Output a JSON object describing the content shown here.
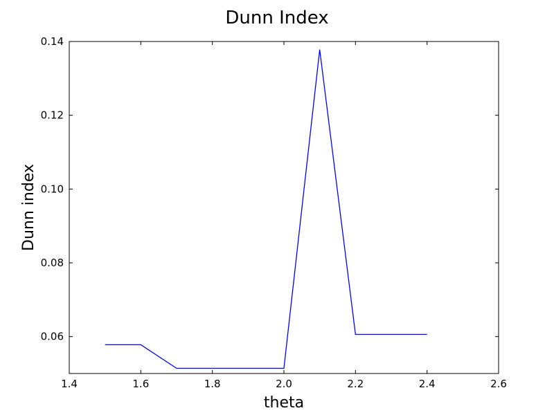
{
  "chart_data": {
    "type": "line",
    "title": "Dunn Index",
    "xlabel": "theta",
    "ylabel": "Dunn index",
    "xlim": [
      1.4,
      2.6
    ],
    "ylim": [
      0.05,
      0.14
    ],
    "x_ticks": [
      "1.4",
      "1.6",
      "1.8",
      "2.0",
      "2.2",
      "2.4",
      "2.6"
    ],
    "y_ticks": [
      "0.06",
      "0.08",
      "0.10",
      "0.12",
      "0.14"
    ],
    "grid": false,
    "legend": "none",
    "series": [
      {
        "color": "#0000ff",
        "x": [
          1.5,
          1.6,
          1.7,
          1.8,
          1.9,
          2.0,
          2.1,
          2.2,
          2.3,
          2.4
        ],
        "y": [
          0.0578,
          0.0578,
          0.0514,
          0.0514,
          0.0514,
          0.0514,
          0.1378,
          0.0606,
          0.0606,
          0.0606
        ]
      }
    ]
  }
}
